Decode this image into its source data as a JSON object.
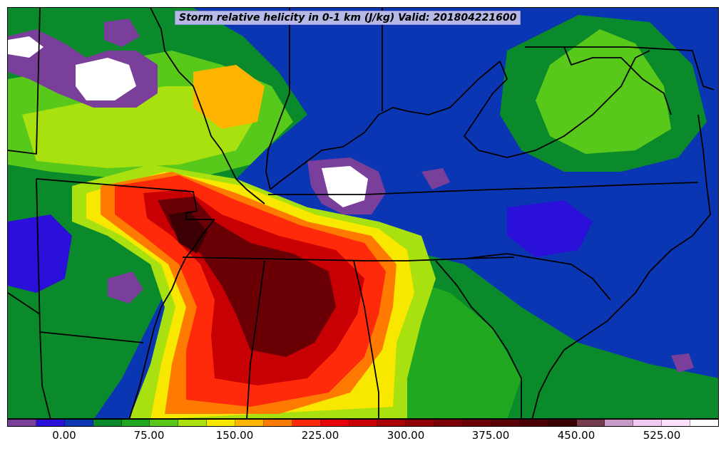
{
  "title": "Storm relative helicity in 0-1 km (J/kg) Valid: 201804221600",
  "colorbar": {
    "labels": [
      "0.00",
      "75.00",
      "150.00",
      "225.00",
      "300.00",
      "375.00",
      "450.00",
      "525.00"
    ],
    "colors": [
      "#7a3f9a",
      "#2a10d8",
      "#0a36b4",
      "#0a8a2a",
      "#22a820",
      "#58c81a",
      "#a8e010",
      "#f8e800",
      "#ffb400",
      "#ff7a00",
      "#ff2a0a",
      "#e80008",
      "#c80004",
      "#a80004",
      "#900004",
      "#7c0006",
      "#6a0006",
      "#5a0006",
      "#4a0004",
      "#3c0004",
      "#743c4c",
      "#c89ac8",
      "#f0c8f0",
      "#fce0fc",
      "#ffffff"
    ]
  },
  "palette": {
    "background": "#0a36b4",
    "blue_dark": "#2a10d8",
    "purple": "#7a3f9a",
    "green_dark": "#0a8a2a",
    "green": "#22a820",
    "green_light": "#58c81a",
    "yellow_green": "#a8e010",
    "yellow": "#f8e800",
    "orange": "#ff7a00",
    "red": "#ff2a0a",
    "dark_red": "#a80004",
    "maroon": "#5a0006",
    "white": "#ffffff"
  }
}
